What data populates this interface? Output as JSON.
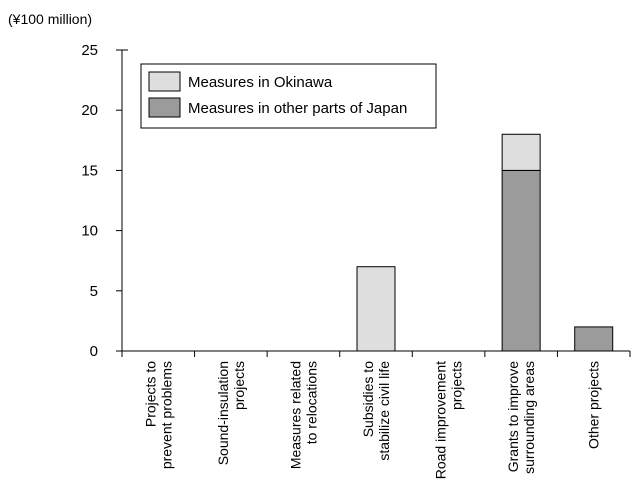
{
  "chart_data": {
    "type": "bar",
    "stacked": true,
    "unit_label": "(¥100 million)",
    "categories": [
      [
        "Projects to",
        "prevent problems"
      ],
      [
        "Sound-insulation",
        "projects"
      ],
      [
        "Measures related",
        "to relocations"
      ],
      [
        "Subsidies to",
        "stabilize civil life"
      ],
      [
        "Road improvement",
        "projects"
      ],
      [
        "Grants to improve",
        "surrounding areas"
      ],
      [
        "Other projects"
      ]
    ],
    "series": [
      {
        "name": "Measures in other parts of Japan",
        "color": "#9b9b9b",
        "values": [
          0,
          0,
          0,
          0,
          0,
          15,
          2
        ]
      },
      {
        "name": "Measures in Okinawa",
        "color": "#dedede",
        "values": [
          0,
          0,
          0,
          7,
          0,
          3,
          0
        ]
      }
    ],
    "legend_order": [
      1,
      0
    ],
    "ylim": [
      0,
      25
    ],
    "yticks": [
      0,
      5,
      10,
      15,
      20,
      25
    ],
    "legend_position": "top-left",
    "grid": false
  }
}
